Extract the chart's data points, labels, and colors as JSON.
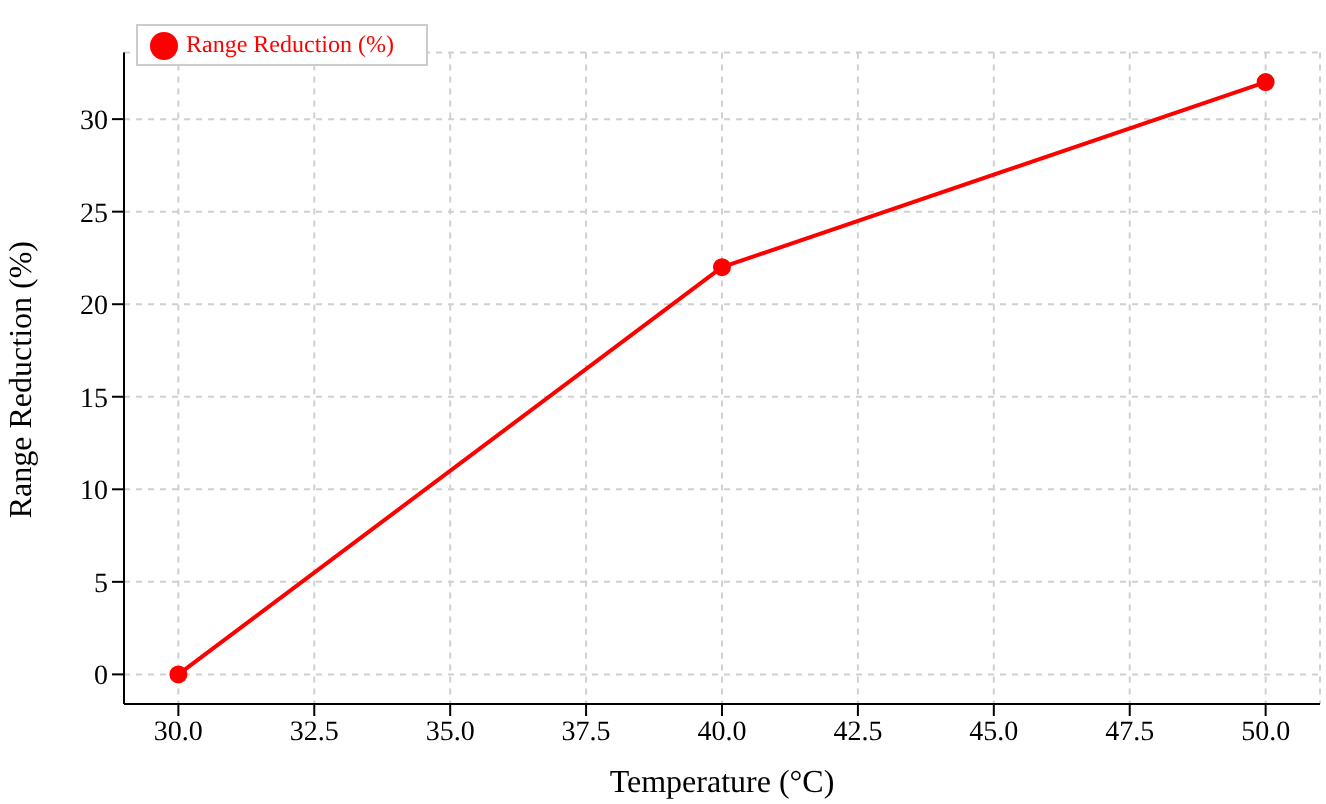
{
  "chart_data": {
    "type": "line",
    "xlabel": "Temperature (°C)",
    "ylabel": "Range Reduction (%)",
    "x": [
      30,
      40,
      50
    ],
    "series": [
      {
        "name": "Range Reduction (%)",
        "color": "#ff0000",
        "values": [
          0,
          22,
          32
        ]
      }
    ],
    "xlim": [
      29,
      51
    ],
    "xticks": [
      {
        "value": 30,
        "label": "30.0"
      },
      {
        "value": 32.5,
        "label": "32.5"
      },
      {
        "value": 35,
        "label": "35.0"
      },
      {
        "value": 37.5,
        "label": "37.5"
      },
      {
        "value": 40,
        "label": "40.0"
      },
      {
        "value": 42.5,
        "label": "42.5"
      },
      {
        "value": 45,
        "label": "45.0"
      },
      {
        "value": 47.5,
        "label": "47.5"
      },
      {
        "value": 50,
        "label": "50.0"
      }
    ],
    "ylim": [
      -1.6,
      33.6
    ],
    "yticks": [
      0,
      5,
      10,
      15,
      20,
      25,
      30
    ],
    "grid": true,
    "legend": "top left",
    "marker": "circle",
    "line_style": "solid"
  }
}
